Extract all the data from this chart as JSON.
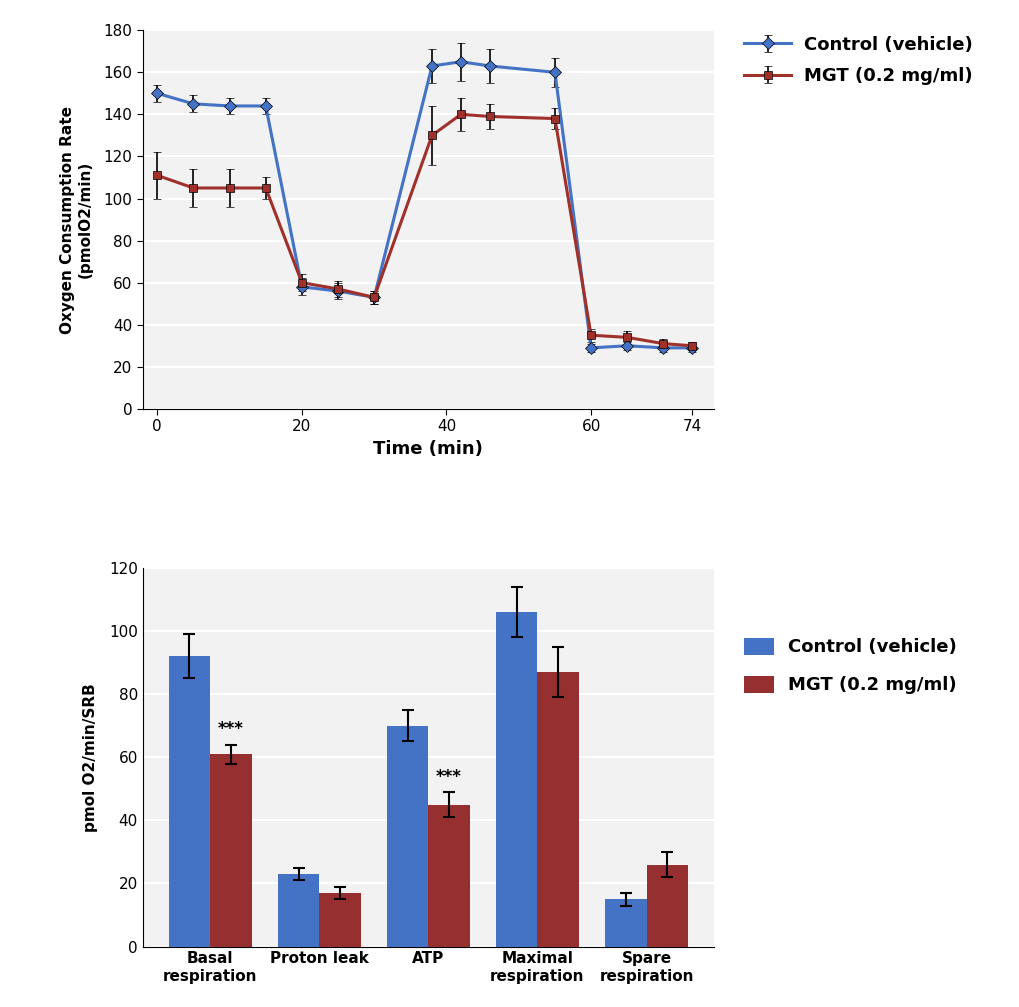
{
  "line_x": [
    0,
    5,
    10,
    15,
    20,
    25,
    30,
    38,
    42,
    46,
    55,
    60,
    65,
    70,
    74
  ],
  "control_y": [
    150,
    145,
    144,
    144,
    58,
    56,
    53,
    163,
    165,
    163,
    160,
    29,
    30,
    29,
    29
  ],
  "control_err": [
    4,
    4,
    4,
    4,
    4,
    4,
    3,
    8,
    9,
    8,
    7,
    2,
    2,
    2,
    2
  ],
  "mgt_y": [
    111,
    105,
    105,
    105,
    60,
    57,
    53,
    130,
    140,
    139,
    138,
    35,
    34,
    31,
    30
  ],
  "mgt_err": [
    11,
    9,
    9,
    5,
    4,
    4,
    3,
    14,
    8,
    6,
    5,
    3,
    3,
    2,
    2
  ],
  "line_xlabel": "Time (min)",
  "line_ylabel": "Oxygen Consumption Rate\n(pmolO2/min)",
  "line_xticks": [
    0,
    20,
    40,
    60,
    74
  ],
  "line_ylim": [
    0,
    180
  ],
  "line_yticks": [
    0,
    20,
    40,
    60,
    80,
    100,
    120,
    140,
    160,
    180
  ],
  "control_color": "#4472C4",
  "mgt_color": "#A0302A",
  "control_label": "Control (vehicle)",
  "mgt_label": "MGT (0.2 mg/ml)",
  "bar_categories": [
    "Basal\nrespiration",
    "Proton leak",
    "ATP",
    "Maximal\nrespiration",
    "Spare\nrespiration"
  ],
  "bar_control": [
    92,
    23,
    70,
    106,
    15
  ],
  "bar_control_err": [
    7,
    2,
    5,
    8,
    2
  ],
  "bar_mgt": [
    61,
    17,
    45,
    87,
    26
  ],
  "bar_mgt_err": [
    3,
    2,
    4,
    8,
    4
  ],
  "bar_ylabel": "pmol O2/min/SRB",
  "bar_ylim": [
    0,
    120
  ],
  "bar_yticks": [
    0,
    20,
    40,
    60,
    80,
    100,
    120
  ],
  "sig_labels": {
    "0": "***",
    "2": "***"
  },
  "bar_control_color": "#4472C4",
  "bar_mgt_color": "#963030",
  "plot_bg": "#F2F2F2",
  "fig_bg": "#FFFFFF",
  "grid_color": "#FFFFFF"
}
